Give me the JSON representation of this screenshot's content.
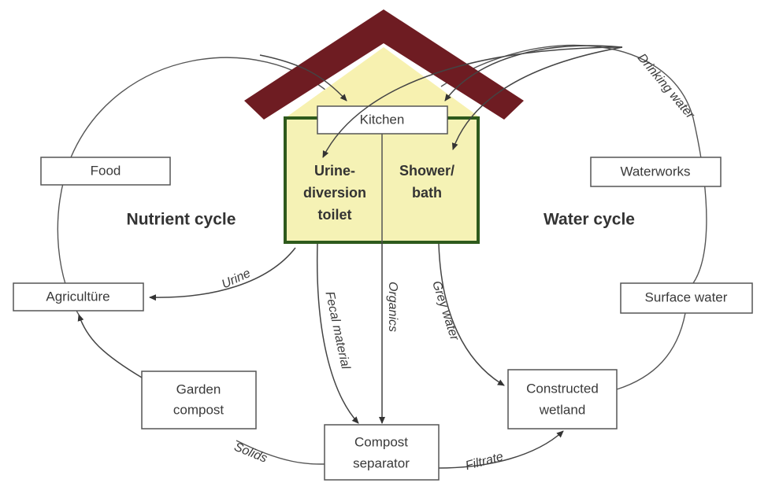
{
  "house": {
    "kitchen": "Kitchen",
    "toilet": [
      "Urine-",
      "diversion",
      "toilet"
    ],
    "shower": [
      "Shower/",
      "bath"
    ]
  },
  "cycles": {
    "nutrient": "Nutrient cycle",
    "water": "Water cycle"
  },
  "nodes": {
    "food": "Food",
    "agriculture": "Agricultüre",
    "garden_compost": [
      "Garden",
      "compost"
    ],
    "compost_separator": [
      "Compost",
      "separator"
    ],
    "constructed_wetland": [
      "Constructed",
      "wetland"
    ],
    "surface_water": "Surface water",
    "waterworks": "Waterworks"
  },
  "flows": {
    "drinking_water": "Drinking water",
    "urine": "Urine",
    "fecal_material": "Fecal material",
    "organics": "Organics",
    "grey_water": "Grey water",
    "solids": "Solids",
    "filtrate": "Filtrate"
  }
}
